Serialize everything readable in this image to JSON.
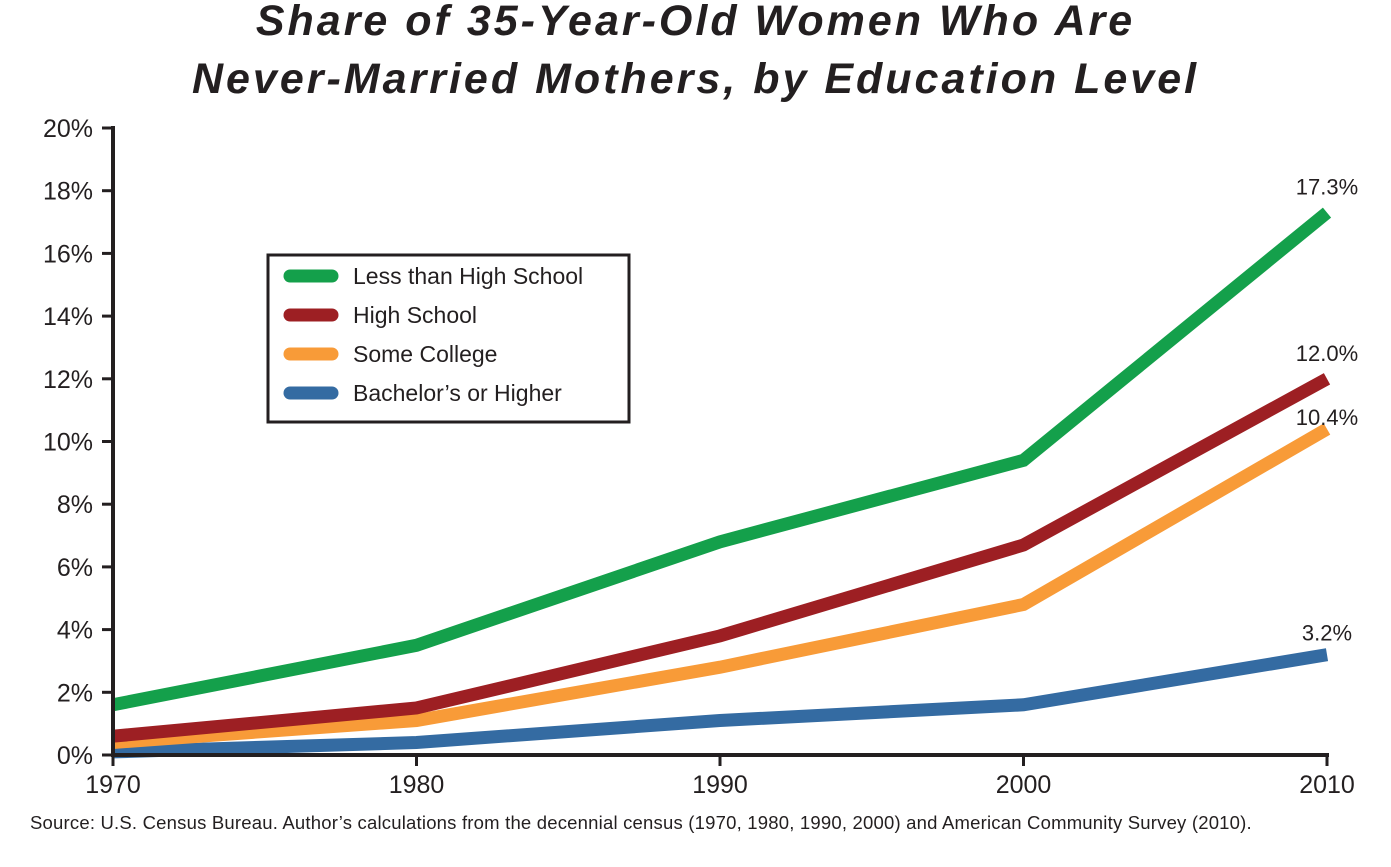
{
  "chart_data": {
    "type": "line",
    "title": [
      "Share of 35-Year-Old Women Who Are",
      "Never-Married Mothers, by Education Level"
    ],
    "x": [
      1970,
      1980,
      1990,
      2000,
      2010
    ],
    "x_tick_labels": [
      "1970",
      "1980",
      "1990",
      "2000",
      "2010"
    ],
    "ylim": [
      0,
      20
    ],
    "y_tick_labels": [
      "0%",
      "2%",
      "4%",
      "6%",
      "8%",
      "10%",
      "12%",
      "14%",
      "16%",
      "18%",
      "20%"
    ],
    "y_ticks": [
      0,
      2,
      4,
      6,
      8,
      10,
      12,
      14,
      16,
      18,
      20
    ],
    "xlabel": "",
    "ylabel": "",
    "grid": false,
    "legend_position": "upper-left",
    "series": [
      {
        "name": "Less than High School",
        "color": "#14a04b",
        "values": [
          1.6,
          3.5,
          6.8,
          9.4,
          17.3
        ],
        "end_label": "17.3%"
      },
      {
        "name": "High School",
        "color": "#9d1f23",
        "values": [
          0.6,
          1.5,
          3.8,
          6.7,
          12.0
        ],
        "end_label": "12.0%"
      },
      {
        "name": "Some College",
        "color": "#f89b38",
        "values": [
          0.4,
          1.1,
          2.8,
          4.8,
          10.4
        ],
        "end_label": "10.4%"
      },
      {
        "name": "Bachelor’s or Higher",
        "color": "#346ba2",
        "values": [
          0.1,
          0.4,
          1.1,
          1.6,
          3.2
        ],
        "end_label": "3.2%"
      }
    ],
    "source": "Source: U.S. Census Bureau. Author’s calculations from the decennial census (1970, 1980, 1990, 2000) and American Community Survey (2010)."
  }
}
